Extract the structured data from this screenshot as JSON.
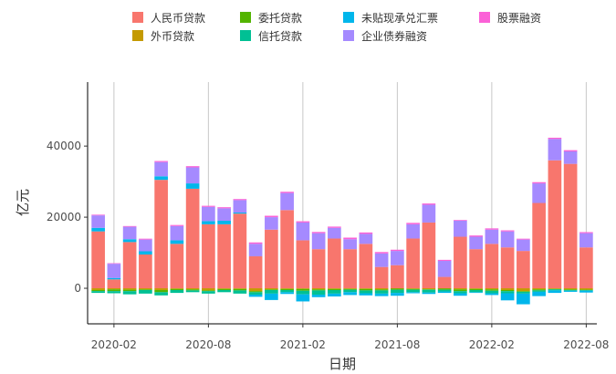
{
  "chart_data": {
    "type": "bar",
    "stacked": true,
    "xlabel": "日期",
    "ylabel": "亿元",
    "ylim": [
      -10000,
      58000
    ],
    "yticks": [
      0,
      20000,
      40000
    ],
    "xticks": [
      {
        "label": "2020-02",
        "index": 1
      },
      {
        "label": "2020-08",
        "index": 7
      },
      {
        "label": "2021-02",
        "index": 13
      },
      {
        "label": "2021-08",
        "index": 19
      },
      {
        "label": "2022-02",
        "index": 25
      },
      {
        "label": "2022-08",
        "index": 31
      }
    ],
    "grid": "x-major-vertical-lines",
    "legend_position": "top",
    "categories": [
      "2020-01",
      "2020-02",
      "2020-03",
      "2020-04",
      "2020-05",
      "2020-06",
      "2020-07",
      "2020-08",
      "2020-09",
      "2020-10",
      "2020-11",
      "2020-12",
      "2021-01",
      "2021-02",
      "2021-03",
      "2021-04",
      "2021-05",
      "2021-06",
      "2021-07",
      "2021-08",
      "2021-09",
      "2021-10",
      "2021-11",
      "2021-12",
      "2022-01",
      "2022-02",
      "2022-03",
      "2022-04",
      "2022-05",
      "2022-06",
      "2022-07",
      "2022-08"
    ],
    "series": [
      {
        "name": "人民币贷款",
        "color": "#F8766D",
        "values": [
          16000,
          2500,
          13000,
          9500,
          30500,
          12500,
          28000,
          18000,
          18000,
          21000,
          9000,
          16500,
          22000,
          13500,
          11000,
          14000,
          11000,
          12500,
          6000,
          6500,
          14000,
          18500,
          3200,
          14500,
          11000,
          12500,
          11500,
          10500,
          24000,
          36000,
          35000,
          11500
        ]
      },
      {
        "name": "外币贷款",
        "color": "#C49A00",
        "values": [
          -500,
          -300,
          -400,
          -300,
          -500,
          -200,
          -300,
          -600,
          -200,
          -200,
          -800,
          -300,
          -200,
          -200,
          -300,
          -200,
          -200,
          -200,
          -300,
          -100,
          -200,
          -300,
          -100,
          -300,
          -200,
          -300,
          -500,
          -800,
          -300,
          -200,
          -300,
          -400
        ]
      },
      {
        "name": "委托贷款",
        "color": "#53B400",
        "values": [
          -300,
          -500,
          -400,
          -200,
          -600,
          -300,
          -300,
          -200,
          -300,
          -400,
          -300,
          -200,
          -300,
          -500,
          -300,
          -300,
          -200,
          -400,
          -300,
          -300,
          -200,
          -100,
          -300,
          -500,
          -300,
          -400,
          -300,
          -200,
          -300,
          -100,
          -200,
          -100
        ]
      },
      {
        "name": "信托贷款",
        "color": "#00C094",
        "values": [
          -500,
          -600,
          -900,
          -1000,
          -900,
          -800,
          -500,
          -700,
          -600,
          -900,
          -700,
          -1000,
          -600,
          -1000,
          -1200,
          -1000,
          -700,
          -800,
          -900,
          -900,
          -700,
          -800,
          -500,
          -600,
          -600,
          -700,
          -600,
          -500,
          -400,
          -300,
          -200,
          -200
        ]
      },
      {
        "name": "未贴现承兑汇票",
        "color": "#00B6EB",
        "values": [
          1000,
          400,
          800,
          900,
          1000,
          1000,
          1500,
          900,
          1000,
          300,
          -600,
          -1800,
          -500,
          -2000,
          -700,
          -800,
          -800,
          -600,
          -700,
          -800,
          -300,
          -400,
          -400,
          -700,
          -200,
          -500,
          -2000,
          -3000,
          -1200,
          -700,
          -300,
          -500
        ]
      },
      {
        "name": "企业债券融资",
        "color": "#A58AFF",
        "values": [
          3500,
          4000,
          3500,
          3300,
          4000,
          4000,
          4500,
          4000,
          3500,
          3500,
          3500,
          3500,
          4800,
          5000,
          4500,
          3000,
          2800,
          2800,
          3800,
          4000,
          4000,
          5000,
          4500,
          4500,
          3500,
          4000,
          4500,
          3200,
          5500,
          6000,
          3500,
          4000
        ]
      },
      {
        "name": "股票融资",
        "color": "#FB61D7",
        "values": [
          200,
          150,
          200,
          250,
          300,
          300,
          350,
          300,
          300,
          300,
          400,
          400,
          350,
          350,
          350,
          350,
          450,
          400,
          400,
          350,
          400,
          350,
          300,
          200,
          350,
          350,
          300,
          250,
          350,
          350,
          350,
          300
        ]
      }
    ]
  }
}
